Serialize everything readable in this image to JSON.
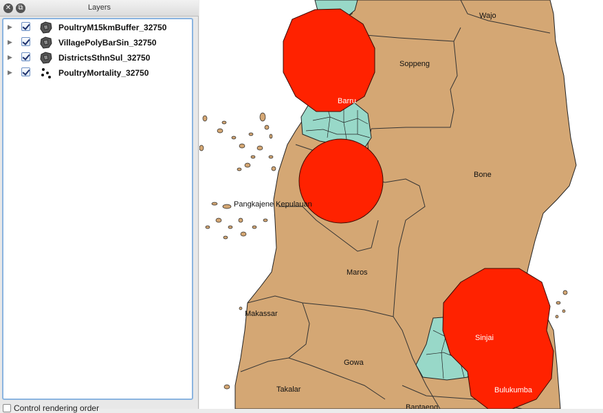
{
  "panel": {
    "title": "Layers",
    "close_icon": "close-icon",
    "float_icon": "float-icon"
  },
  "layers": [
    {
      "name": "PoultryM15kmBuffer_32750",
      "icon": "polygon-layer-icon",
      "checked": true
    },
    {
      "name": "VillagePolyBarSin_32750",
      "icon": "polygon-layer-icon",
      "checked": true
    },
    {
      "name": "DistrictsSthnSul_32750",
      "icon": "polygon-layer-icon",
      "checked": true
    },
    {
      "name": "PoultryMortality_32750",
      "icon": "point-layer-icon",
      "checked": true
    }
  ],
  "footer": {
    "label": "Control rendering order",
    "checked": false
  },
  "map": {
    "labels": {
      "wajo": "Wajo",
      "soppeng": "Soppeng",
      "barru": "Barru",
      "bone": "Bone",
      "pangkajene": "Pangkajene Kepulauan",
      "maros": "Maros",
      "makassar": "Makassar",
      "gowa": "Gowa",
      "sinjai": "Sinjai",
      "takalar": "Takalar",
      "bulukumba": "Bulukumba",
      "bantaeng": "Bantaeng"
    },
    "colors": {
      "district_fill": "#d4a774",
      "village_fill": "#98d8c8",
      "buffer_fill": "#ff2200",
      "background": "#ffffff"
    }
  }
}
